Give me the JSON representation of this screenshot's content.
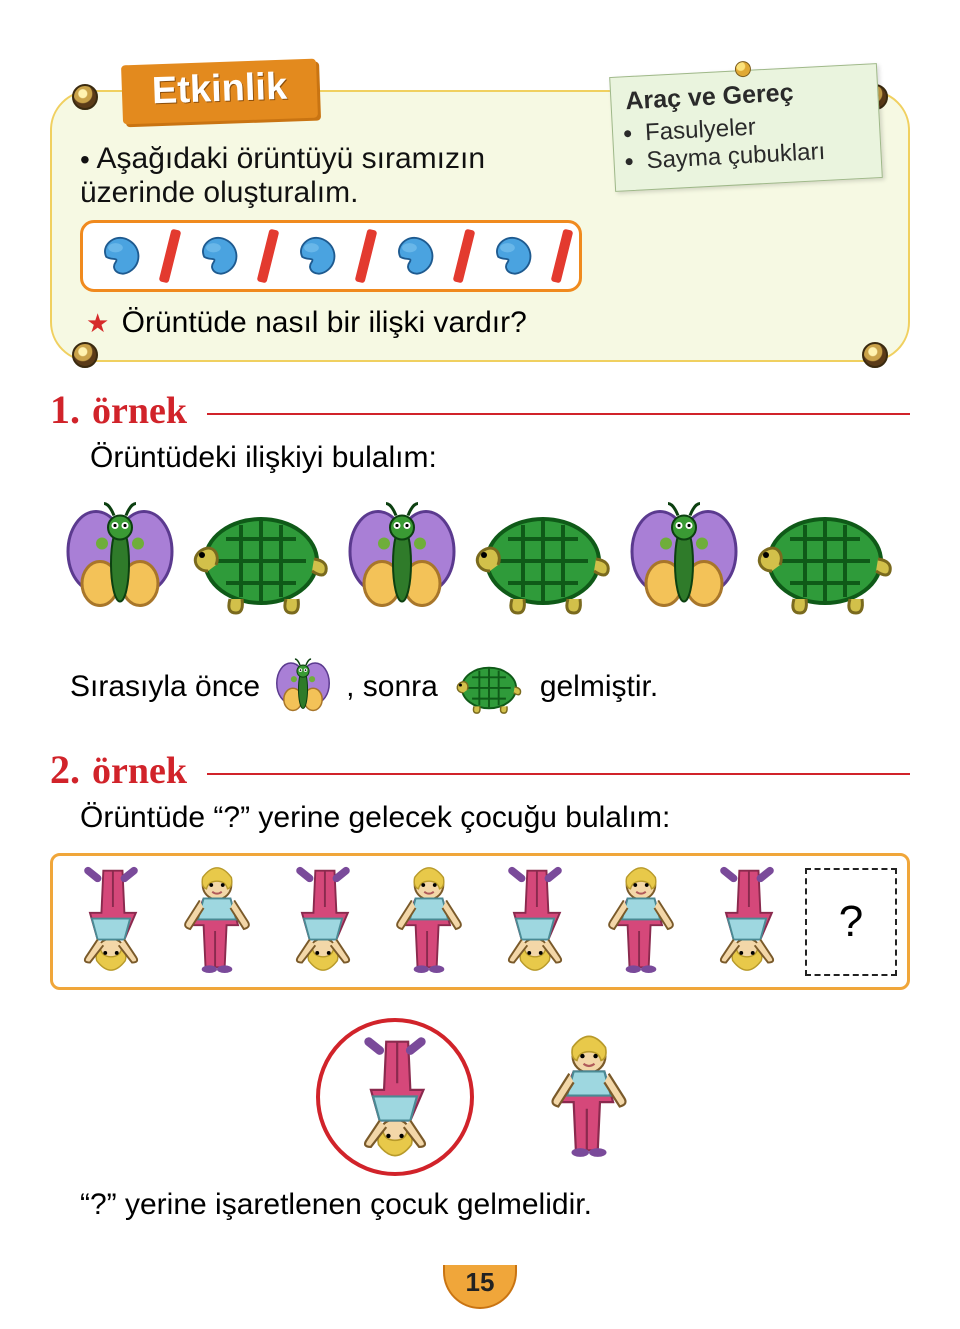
{
  "activity": {
    "banner": "Etkinlik",
    "instruction_prefix_bullet": "•",
    "instruction": "Aşağıdaki örüntüyü sıramızın üzerinde oluşturalım.",
    "starline_star": "★",
    "starline_text": "Örüntüde nasıl bir ilişki vardır?",
    "pattern_sequence": [
      "bean",
      "stick",
      "bean",
      "stick",
      "bean",
      "stick",
      "bean",
      "stick",
      "bean",
      "stick"
    ]
  },
  "sticky": {
    "title": "Araç ve Gereç",
    "items": [
      "Fasulyeler",
      "Sayma çubukları"
    ]
  },
  "example1": {
    "number": "1.",
    "word": "örnek",
    "body": "Örüntüdeki ilişkiyi bulalım:",
    "sequence": [
      "butterfly",
      "turtle",
      "butterfly",
      "turtle",
      "butterfly",
      "turtle"
    ],
    "sentence_parts": {
      "a": "Sırasıyla önce",
      "b": ", sonra",
      "c": "gelmiştir."
    }
  },
  "example2": {
    "number": "2.",
    "word": "örnek",
    "body": "Örüntüde “?” yerine gelecek çocuğu bulalım:",
    "sequence": [
      "upside",
      "standing",
      "upside",
      "standing",
      "upside",
      "standing",
      "upside",
      "?"
    ],
    "question_mark": "?",
    "answer_text": "“?” yerine işaretlenen çocuk gelmelidir."
  },
  "colors": {
    "activity_bg": "#f6f9e3",
    "banner_bg": "#e38a1e",
    "red": "#d1232a",
    "orange_border": "#f0a63a",
    "bean_fill": "#4aa3e0",
    "bean_stroke": "#1e5a8f",
    "stick": "#e33a2f",
    "butterfly_wing": "#a97fd6",
    "butterfly_wing2": "#f3c258",
    "butterfly_body": "#2f7b2a",
    "turtle_shell": "#2f9b3a",
    "turtle_shell_lines": "#0f5a18",
    "turtle_body": "#d2c04a",
    "child_shirt": "#9ed7e0",
    "child_pants": "#d5487a",
    "child_hair": "#e8c94a",
    "child_skin": "#f3d7a8"
  },
  "page_number": "15"
}
